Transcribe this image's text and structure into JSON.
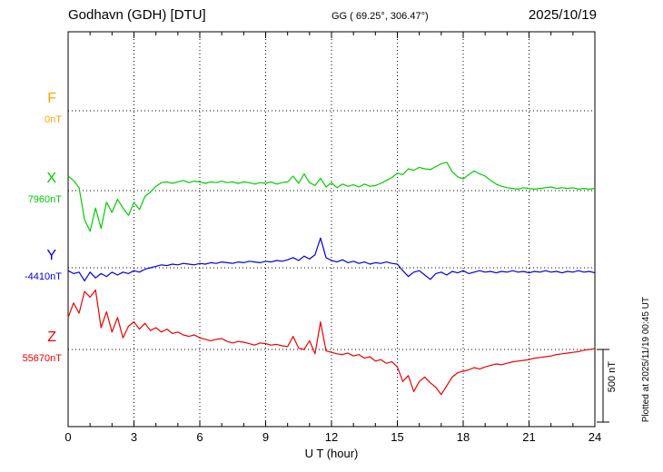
{
  "chart_data": {
    "type": "line",
    "title": "Godhavn (GDH)  [DTU]",
    "subtitle": "GG ( 69.25°, 306.47°)",
    "date": "2025/10/19",
    "xlabel": "U T (hour)",
    "x_range": [
      0,
      24
    ],
    "x_ticks": [
      0,
      3,
      6,
      9,
      12,
      15,
      18,
      21,
      24
    ],
    "hour_step": 0.25,
    "grid": "dotted vertical at 3h intervals, dotted horizontal baseline per trace",
    "scale_bar_label": "500 nT",
    "scale_bar_nt": 500,
    "plotted_note": "Plotted at 2025/11/19 00:45 UT",
    "series": [
      {
        "name": "F",
        "baseline_value_label": "0nT",
        "color": "#ffa500",
        "values": []
      },
      {
        "name": "X",
        "baseline_value_label": "7960nT",
        "color": "#00cc00",
        "values": [
          100,
          70,
          20,
          -200,
          -280,
          -120,
          -260,
          -80,
          -150,
          -60,
          -120,
          -170,
          -80,
          -130,
          -40,
          -10,
          30,
          55,
          60,
          50,
          60,
          70,
          55,
          65,
          60,
          50,
          60,
          55,
          65,
          55,
          60,
          50,
          60,
          55,
          45,
          55,
          50,
          60,
          45,
          55,
          60,
          100,
          50,
          115,
          55,
          35,
          85,
          25,
          55,
          20,
          45,
          30,
          40,
          25,
          45,
          30,
          35,
          50,
          70,
          90,
          120,
          110,
          150,
          140,
          160,
          150,
          145,
          165,
          185,
          195,
          130,
          95,
          80,
          110,
          135,
          115,
          100,
          70,
          45,
          30,
          20,
          15,
          10,
          20,
          15,
          10,
          15,
          20,
          25,
          15,
          20,
          15,
          20,
          10,
          15,
          10,
          15
        ]
      },
      {
        "name": "Y",
        "baseline_value_label": "-4410nT",
        "color": "#0000dd",
        "values": [
          -20,
          -40,
          -30,
          -90,
          -30,
          -70,
          -40,
          -60,
          -30,
          -50,
          -30,
          -40,
          -20,
          -30,
          -10,
          0,
          10,
          20,
          15,
          25,
          20,
          30,
          25,
          20,
          30,
          25,
          35,
          30,
          40,
          35,
          30,
          40,
          35,
          45,
          40,
          35,
          45,
          40,
          50,
          45,
          55,
          70,
          50,
          80,
          60,
          90,
          205,
          70,
          50,
          40,
          55,
          35,
          45,
          30,
          40,
          25,
          35,
          30,
          40,
          30,
          25,
          -20,
          -60,
          -30,
          -20,
          -50,
          -80,
          -40,
          -30,
          -50,
          -25,
          -35,
          -20,
          -40,
          -30,
          -20,
          -30,
          -25,
          -35,
          -25,
          -30,
          -20,
          -30,
          -25,
          -35,
          -25,
          -30,
          -20,
          -30,
          -25,
          -35,
          -25,
          -30,
          -20,
          -30,
          -25,
          -35
        ]
      },
      {
        "name": "Z",
        "baseline_value_label": "55670nT",
        "color": "#ee0000",
        "values": [
          220,
          320,
          250,
          400,
          360,
          410,
          150,
          260,
          120,
          220,
          80,
          160,
          190,
          140,
          180,
          130,
          150,
          120,
          140,
          110,
          120,
          100,
          90,
          100,
          80,
          70,
          60,
          70,
          75,
          55,
          45,
          55,
          50,
          40,
          30,
          45,
          40,
          30,
          35,
          25,
          20,
          90,
          10,
          0,
          60,
          -30,
          190,
          -10,
          -20,
          -30,
          -35,
          -25,
          -45,
          -35,
          -60,
          -50,
          -80,
          -70,
          -95,
          -85,
          -120,
          -220,
          -180,
          -290,
          -220,
          -190,
          -230,
          -260,
          -310,
          -250,
          -190,
          -160,
          -150,
          -140,
          -125,
          -135,
          -120,
          -110,
          -100,
          -105,
          -95,
          -85,
          -80,
          -75,
          -70,
          -60,
          -55,
          -50,
          -45,
          -35,
          -30,
          -25,
          -20,
          -15,
          -5,
          0,
          5
        ]
      }
    ]
  }
}
